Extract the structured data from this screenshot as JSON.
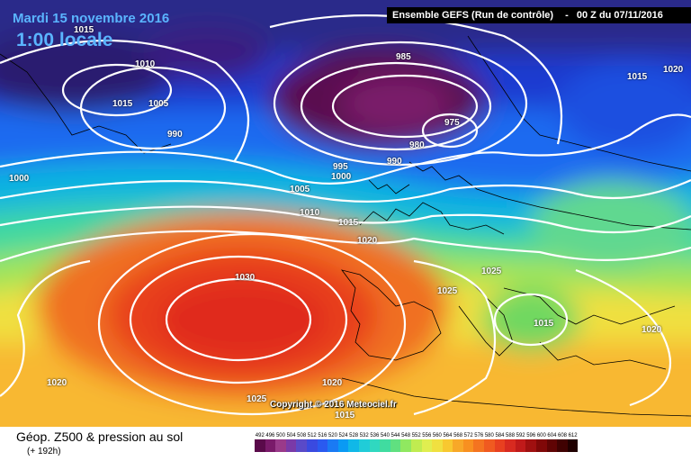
{
  "header": {
    "date": "Mardi 15 novembre 2016",
    "time": "1:00 locale",
    "run_label": "Ensemble GEFS  (Run de contrôle)",
    "run_time": "00 Z du 07/11/2016"
  },
  "copyright": "Copyright © 2016 Meteociel.fr",
  "footer": {
    "title": "Géop. Z500 & pression au sol",
    "subtitle": "(+ 192h)"
  },
  "scale": {
    "values": [
      "492",
      "496",
      "500",
      "504",
      "508",
      "512",
      "516",
      "520",
      "524",
      "528",
      "532",
      "536",
      "540",
      "544",
      "548",
      "552",
      "556",
      "560",
      "564",
      "568",
      "572",
      "576",
      "580",
      "584",
      "588",
      "592",
      "596",
      "600",
      "604",
      "608",
      "612"
    ],
    "colors": [
      "#5a0a4a",
      "#7a1a6a",
      "#9a3a8a",
      "#7a3aa8",
      "#5a4ac8",
      "#3a4ae0",
      "#2a5af0",
      "#1a7af4",
      "#0a9af4",
      "#10b8e8",
      "#20ccd8",
      "#30d8c0",
      "#40dca0",
      "#60e080",
      "#90e860",
      "#c0ec50",
      "#e0ee50",
      "#f0e040",
      "#f8c830",
      "#f8a828",
      "#f89020",
      "#f47420",
      "#f05a20",
      "#e84020",
      "#d82a20",
      "#c01a1a",
      "#a01010",
      "#800808",
      "#600404",
      "#400202",
      "#200000"
    ]
  },
  "isobars": [
    {
      "label": "1015",
      "value": 1015
    },
    {
      "label": "1010",
      "value": 1010
    },
    {
      "label": "1015",
      "value": 1015
    },
    {
      "label": "1005",
      "value": 1005
    },
    {
      "label": "990",
      "value": 990
    },
    {
      "label": "985",
      "value": 985
    },
    {
      "label": "975",
      "value": 975
    },
    {
      "label": "980",
      "value": 980
    },
    {
      "label": "995",
      "value": 995
    },
    {
      "label": "1000",
      "value": 1000
    },
    {
      "label": "990",
      "value": 990
    },
    {
      "label": "1015",
      "value": 1015
    },
    {
      "label": "1020",
      "value": 1020
    },
    {
      "label": "1000",
      "value": 1000
    },
    {
      "label": "1005",
      "value": 1005
    },
    {
      "label": "1010",
      "value": 1010
    },
    {
      "label": "1015",
      "value": 1015
    },
    {
      "label": "1020",
      "value": 1020
    },
    {
      "label": "1030",
      "value": 1030
    },
    {
      "label": "1025",
      "value": 1025
    },
    {
      "label": "1025",
      "value": 1025
    },
    {
      "label": "1015",
      "value": 1015
    },
    {
      "label": "1020",
      "value": 1020
    },
    {
      "label": "1020",
      "value": 1020
    },
    {
      "label": "1020",
      "value": 1020
    },
    {
      "label": "1025",
      "value": 1025
    },
    {
      "label": "1015",
      "value": 1015
    }
  ]
}
